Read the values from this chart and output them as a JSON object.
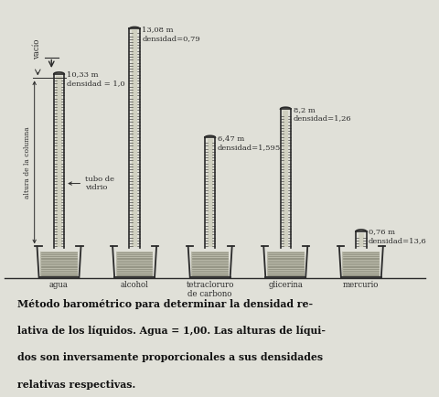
{
  "bg_color": "#d8d8d0",
  "fig_color": "#e0e0d8",
  "liquids": [
    "agua",
    "alcohol",
    "tetracloruro\nde carbono",
    "glicerina",
    "mercurio"
  ],
  "heights_m": [
    10.33,
    13.08,
    6.47,
    8.2,
    0.76
  ],
  "height_labels": [
    "10,33 m",
    "13,08 m",
    "6,47 m",
    "8,2 m",
    "0,76 m"
  ],
  "density_labels": [
    "densidad = 1,0",
    "densidad=0,79",
    "densidad=1,595",
    "densidad=1,26",
    "densidad=13,6"
  ],
  "vacuo_label": "vacío",
  "column_label": "altura de la columna",
  "tube_label": "tubo de\nvidrio",
  "caption": "Método barométrico para determinar la densidad re-\nlativa de los líquidos. Agua = 1,00. Las alturas de líqui-\ndos son inversamente proporcionales a sus densidades\nrelativas respectivas.",
  "line_color": "#2a2a2a",
  "liquid_color": "#b8b8a8",
  "liquid_line_color": "#888878",
  "tube_fill_color": "#d0d0c0"
}
